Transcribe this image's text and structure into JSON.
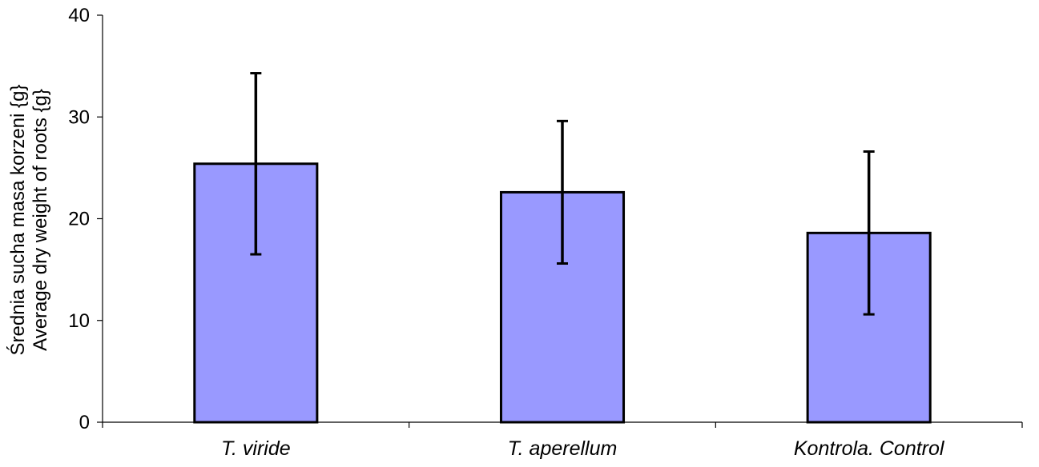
{
  "chart_data": {
    "type": "bar",
    "categories": [
      "T. viride",
      "T. aperellum",
      "Kontrola. Control"
    ],
    "values": [
      25.4,
      22.6,
      18.6
    ],
    "error": [
      8.9,
      7.0,
      8.0
    ],
    "ylabel_lines": [
      "Średnia sucha masa korzeni {g}",
      "Average dry weight of roots {g}"
    ],
    "xlabel": "",
    "title": "",
    "ylim": [
      0,
      40
    ],
    "yticks": [
      0,
      10,
      20,
      30,
      40
    ],
    "grid": false,
    "legend": "none",
    "colors": {
      "bar_fill": "#9999ff",
      "bar_stroke": "#000000",
      "error_bar": "#000000",
      "axis": "#000000"
    }
  }
}
